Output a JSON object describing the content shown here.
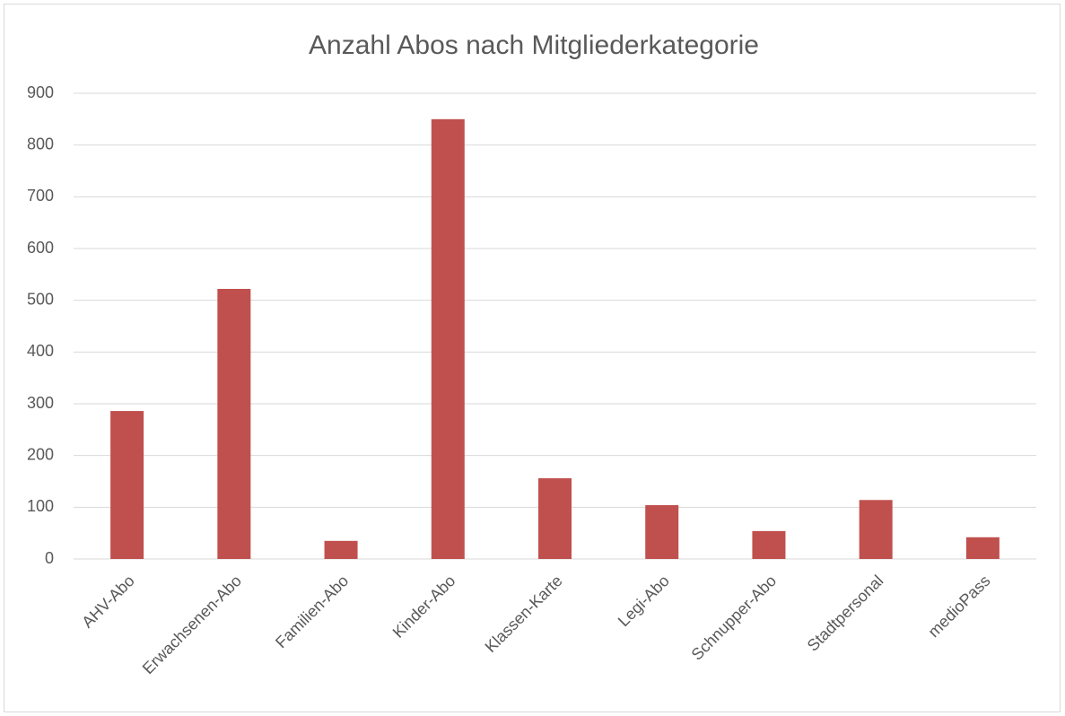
{
  "chart_data": {
    "type": "bar",
    "title": "Anzahl Abos nach Mitgliederkategorie",
    "categories": [
      "AHV-Abo",
      "Erwachsenen-Abo",
      "Familien-Abo",
      "Kinder-Abo",
      "Klassen-Karte",
      "Legi-Abo",
      "Schnupper-Abo",
      "Stadtpersonal",
      "medioPass"
    ],
    "values": [
      286,
      522,
      35,
      850,
      156,
      104,
      54,
      114,
      42
    ],
    "color": "#c0504d",
    "ylim": [
      0,
      900
    ],
    "yticks": [
      0,
      100,
      200,
      300,
      400,
      500,
      600,
      700,
      800,
      900
    ],
    "grid": true
  }
}
